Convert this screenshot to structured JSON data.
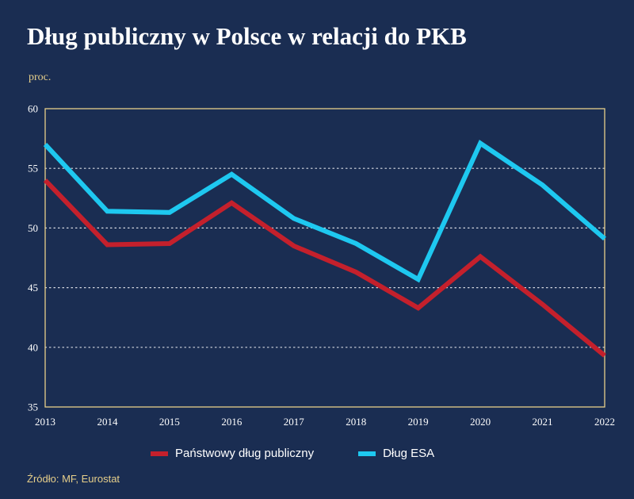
{
  "title": "Dług publiczny w Polsce w relacji do PKB",
  "unit": "proc.",
  "source": "Źródło: MF, Eurostat",
  "colors": {
    "background": "#1a2d52",
    "frame": "#e7cf8a",
    "accent_text": "#e7cf8a",
    "series_red": "#c4202c",
    "series_blue": "#1ec8f0"
  },
  "chart_data": {
    "type": "line",
    "x": [
      "2013",
      "2014",
      "2015",
      "2016",
      "2017",
      "2018",
      "2019",
      "2020",
      "2021",
      "2022"
    ],
    "ylim": [
      35,
      60
    ],
    "yticks": [
      "35",
      "40",
      "45",
      "50",
      "55",
      "60"
    ],
    "grid": "horizontal dotted",
    "legend_position": "bottom",
    "series": [
      {
        "name": "Państwowy dług publiczny",
        "color": "#c4202c",
        "values": [
          54.0,
          48.6,
          48.7,
          52.1,
          48.5,
          46.3,
          43.3,
          47.6,
          43.6,
          39.3
        ]
      },
      {
        "name": "Dług ESA",
        "color": "#1ec8f0",
        "values": [
          57.0,
          51.4,
          51.3,
          54.5,
          50.8,
          48.7,
          45.7,
          57.1,
          53.6,
          49.1
        ]
      }
    ]
  }
}
